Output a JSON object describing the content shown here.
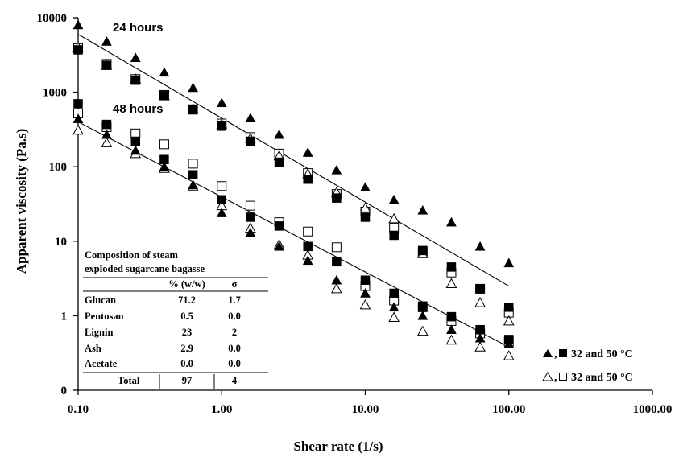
{
  "chart_data": {
    "type": "scatter",
    "xscale": "log",
    "yscale": "log",
    "xlim": [
      0.1,
      1000
    ],
    "ylim": [
      0,
      10000
    ],
    "xlabel": "Shear rate (1/s)",
    "ylabel": "Apparent viscosity (Pa.s)",
    "x_tick_labels": [
      "0.10",
      "1.00",
      "10.00",
      "100.00",
      "1000.00"
    ],
    "y_tick_labels": [
      "0",
      "1",
      "10",
      "100",
      "1000",
      "10000"
    ],
    "annotations": [
      "24 hours",
      "48 hours"
    ],
    "legend": [
      {
        "label": "32 and 50 °C",
        "markers": [
          "filled-triangle",
          "filled-square"
        ]
      },
      {
        "label": "32 and 50 °C",
        "markers": [
          "open-triangle",
          "open-square"
        ]
      }
    ],
    "x": [
      0.1,
      0.158,
      0.251,
      0.398,
      0.631,
      1.0,
      1.585,
      2.512,
      3.981,
      6.31,
      10.0,
      15.85,
      25.12,
      39.81,
      63.1,
      100.0
    ],
    "series": [
      {
        "marker": "filled-triangle",
        "group": "24 hours",
        "values": [
          8000,
          4800,
          2900,
          1850,
          1150,
          720,
          450,
          270,
          155,
          90,
          53,
          36,
          26,
          18,
          8.5,
          5.1
        ]
      },
      {
        "marker": "filled-square",
        "group": "24 hours",
        "values": [
          3700,
          2300,
          1450,
          900,
          580,
          350,
          220,
          115,
          68,
          38,
          21,
          12,
          7.5,
          4.5,
          2.3,
          1.3
        ]
      },
      {
        "marker": "open-square",
        "group": "24 hours",
        "values": [
          3900,
          2400,
          1500,
          920,
          590,
          380,
          250,
          150,
          82,
          43,
          25,
          15,
          7.3,
          3.8,
          2.3,
          1.1
        ]
      },
      {
        "marker": "open-triangle",
        "group": "24 hours",
        "values": [
          4000,
          2300,
          1500,
          900,
          600,
          370,
          240,
          140,
          80,
          45,
          28,
          20,
          6.8,
          2.7,
          1.5,
          0.85
        ]
      },
      {
        "marker": "filled-triangle",
        "group": "48 hours",
        "values": [
          440,
          270,
          165,
          100,
          57,
          24,
          13,
          8.5,
          5.5,
          3.0,
          2.0,
          1.3,
          1.0,
          0.65,
          0.5,
          0.42
        ]
      },
      {
        "marker": "filled-square",
        "group": "48 hours",
        "values": [
          700,
          370,
          220,
          125,
          78,
          36,
          21,
          16,
          8.5,
          5.3,
          3.0,
          2.0,
          1.35,
          0.97,
          0.65,
          0.48
        ]
      },
      {
        "marker": "open-square",
        "group": "48 hours",
        "values": [
          520,
          340,
          280,
          200,
          110,
          55,
          30,
          18,
          13.5,
          8.3,
          2.5,
          1.6,
          1.3,
          0.85,
          0.58,
          0.45
        ]
      },
      {
        "marker": "open-triangle",
        "group": "48 hours",
        "values": [
          310,
          210,
          150,
          95,
          55,
          30,
          15,
          9,
          6.5,
          2.3,
          1.4,
          0.95,
          0.62,
          0.47,
          0.38,
          0.29
        ]
      }
    ],
    "trend_lines": [
      {
        "group": "24 hours",
        "from": [
          0.1,
          6000
        ],
        "to": [
          100,
          2.5
        ]
      },
      {
        "group": "48 hours",
        "from": [
          0.1,
          400
        ],
        "to": [
          100,
          0.38
        ]
      }
    ]
  },
  "composition_table": {
    "title_line1": "Composition of steam",
    "title_line2": "exploded sugarcane bagasse",
    "headers": [
      "",
      "% (w/w)",
      "σ"
    ],
    "rows": [
      [
        "Glucan",
        "71.2",
        "1.7"
      ],
      [
        "Pentosan",
        "0.5",
        "0.0"
      ],
      [
        "Lignin",
        "23",
        "2"
      ],
      [
        "Ash",
        "2.9",
        "0.0"
      ],
      [
        "Acetate",
        "0.0",
        "0.0"
      ]
    ],
    "total": [
      "Total",
      "97",
      "4"
    ]
  },
  "colors": {
    "ink": "#000000",
    "background": "#ffffff"
  }
}
